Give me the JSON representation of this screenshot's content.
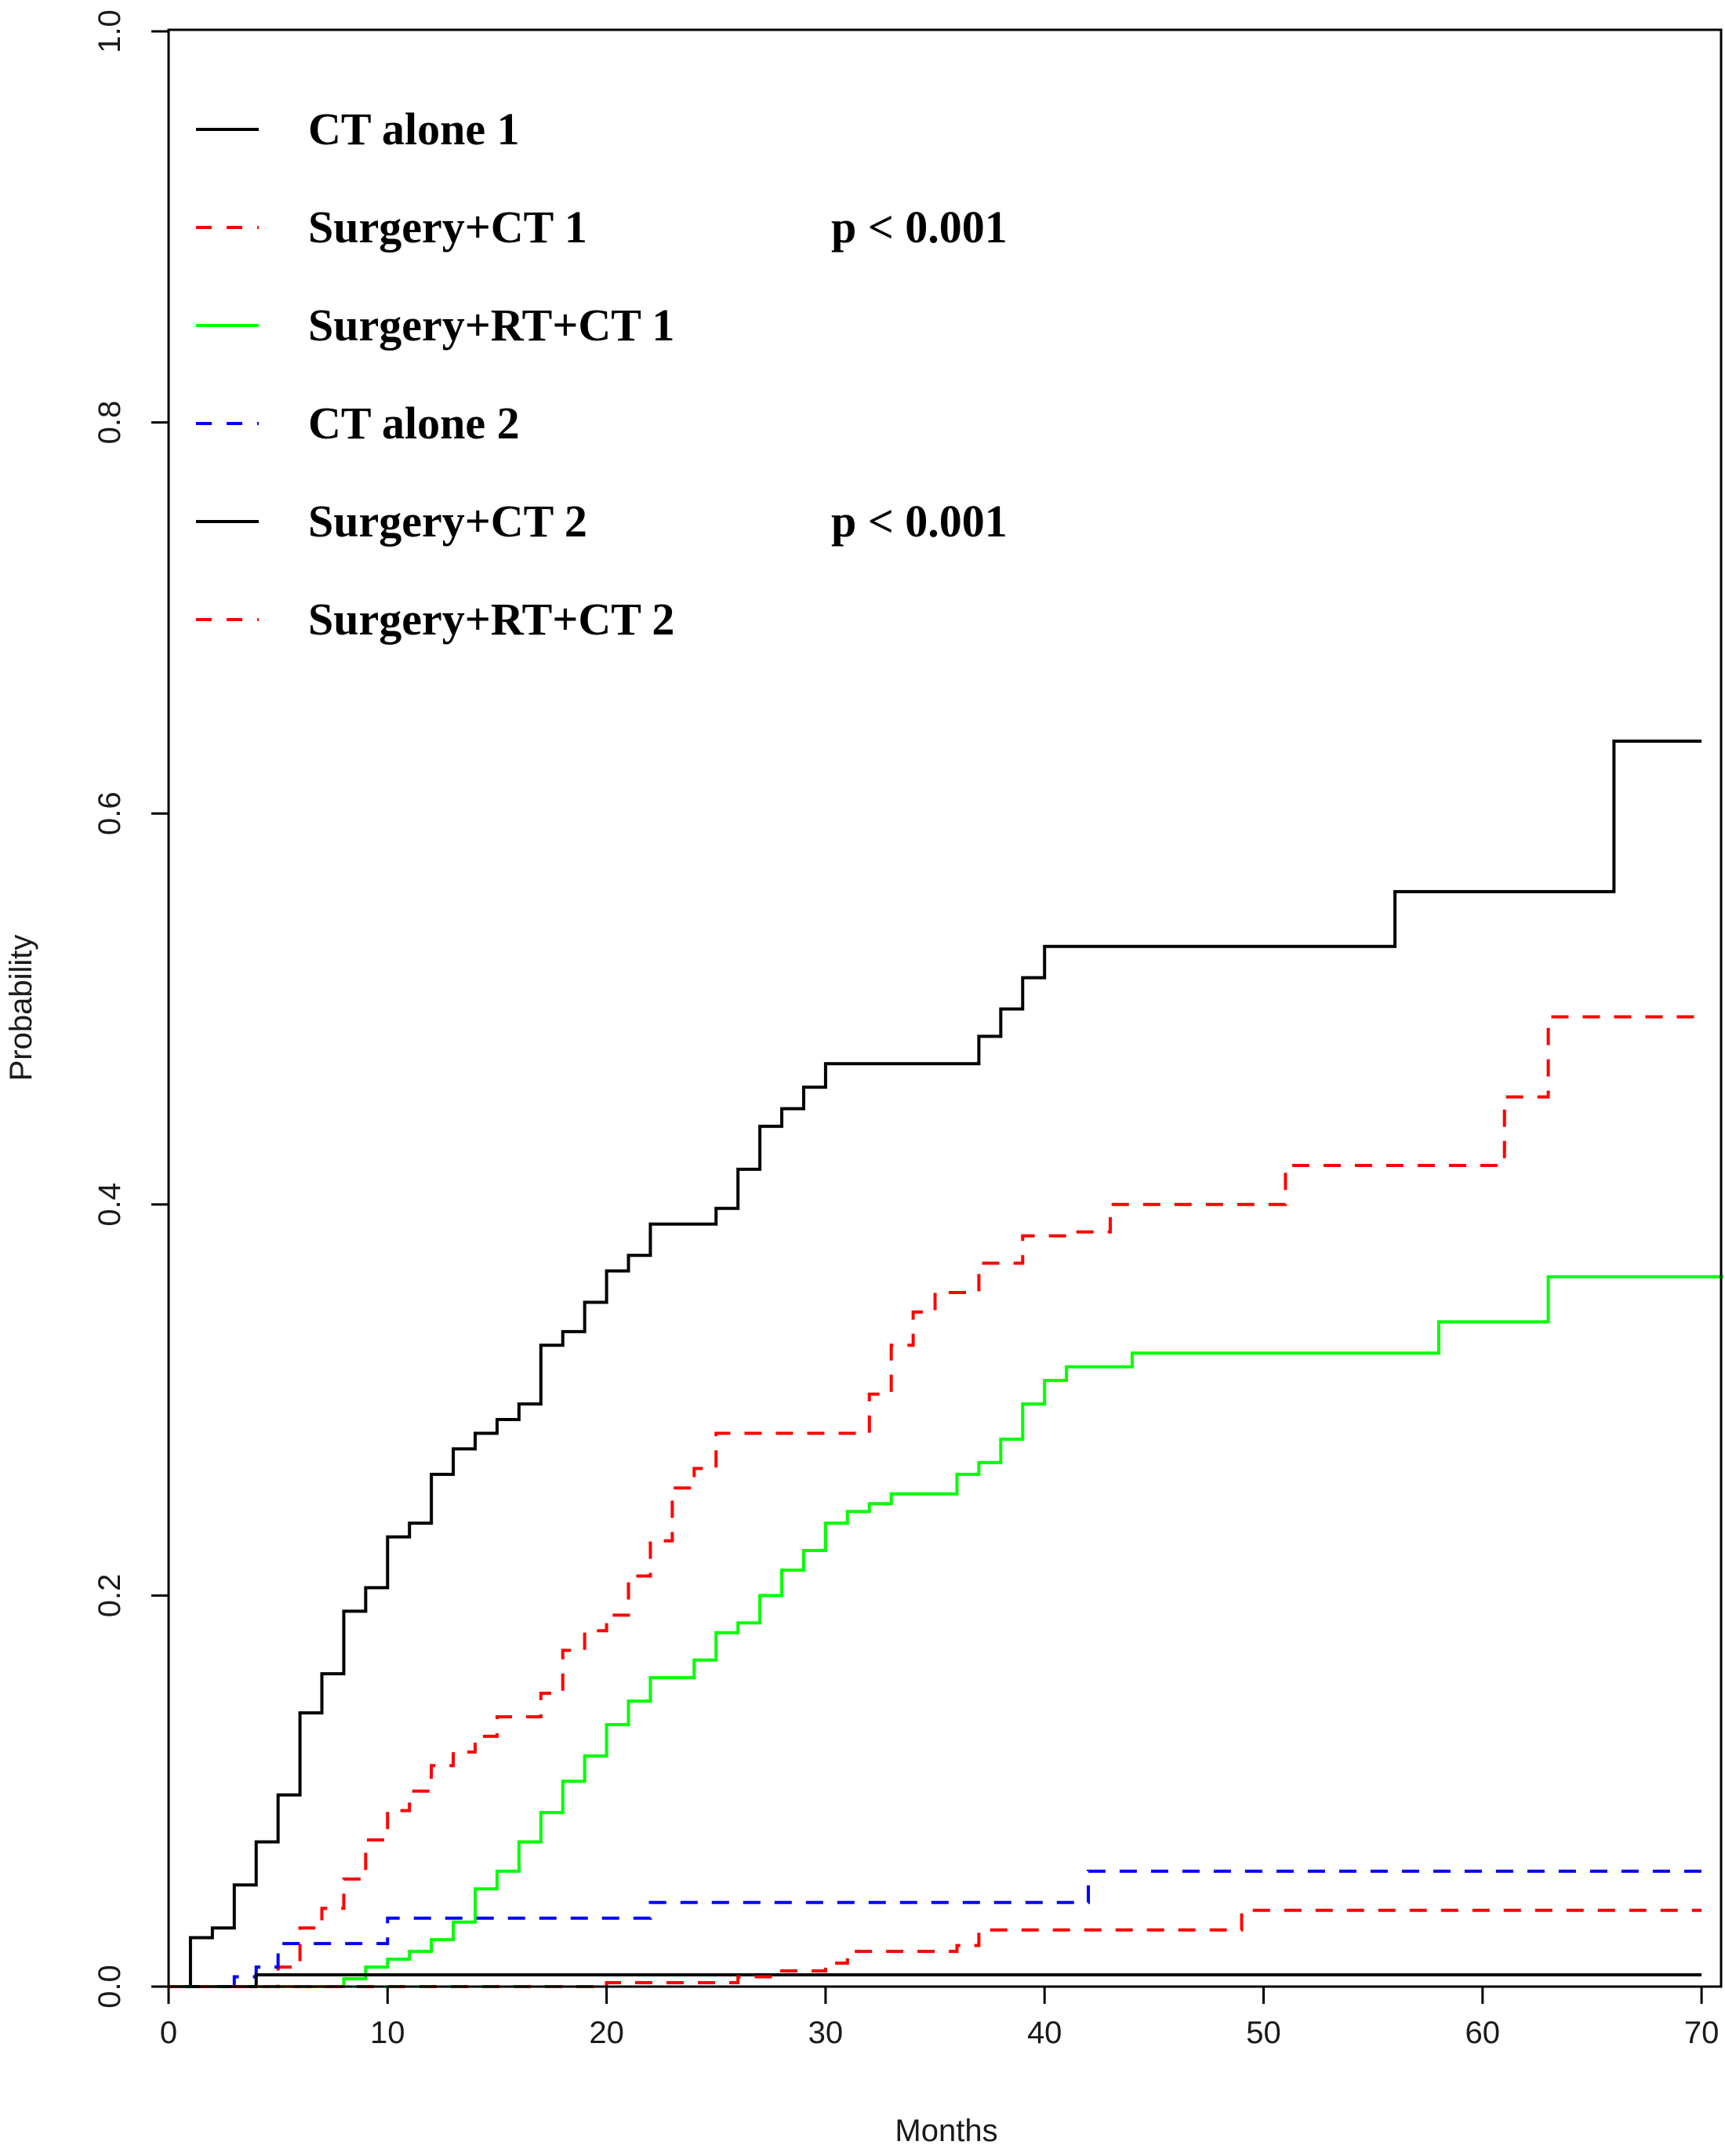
{
  "chart_data": {
    "type": "line",
    "title": "",
    "xlabel": "Months",
    "ylabel": "Probability",
    "xlim": [
      0,
      70
    ],
    "ylim": [
      0,
      1
    ],
    "x_ticks": [
      0,
      10,
      20,
      30,
      40,
      50,
      60,
      70
    ],
    "x_tick_labels": [
      "0",
      "10",
      "20",
      "30",
      "40",
      "50",
      "60",
      "70"
    ],
    "y_ticks": [
      0,
      0.2,
      0.4,
      0.6,
      0.8,
      1
    ],
    "y_tick_labels": [
      "0.0",
      "0.2",
      "0.4",
      "0.6",
      "0.8",
      "1.0"
    ],
    "grid": false,
    "legend_placement": "top-left",
    "step": true,
    "series": [
      {
        "name": "CT alone 1",
        "color": "#000000",
        "dash": "solid",
        "x": [
          0,
          1,
          2,
          3,
          4,
          5,
          6,
          7,
          8,
          9,
          10,
          11,
          12,
          13,
          14,
          15,
          16,
          17,
          18,
          19,
          20,
          21,
          22,
          25,
          26,
          27,
          28,
          29,
          30,
          37,
          38,
          39,
          40,
          56,
          66,
          70
        ],
        "y": [
          0,
          0.025,
          0.03,
          0.052,
          0.074,
          0.098,
          0.14,
          0.16,
          0.192,
          0.204,
          0.23,
          0.237,
          0.262,
          0.275,
          0.283,
          0.29,
          0.298,
          0.328,
          0.335,
          0.35,
          0.366,
          0.374,
          0.39,
          0.398,
          0.418,
          0.44,
          0.449,
          0.46,
          0.472,
          0.486,
          0.5,
          0.516,
          0.532,
          0.56,
          0.637,
          0.637
        ]
      },
      {
        "name": "Surgery+CT 1",
        "color": "#ff0000",
        "dash": "dashed",
        "x": [
          0,
          5,
          6,
          7,
          8,
          9,
          10,
          11,
          12,
          13,
          14,
          15,
          17,
          18,
          19,
          20,
          21,
          22,
          23,
          24,
          25,
          32,
          33,
          34,
          35,
          37,
          39,
          41,
          43,
          51,
          61,
          63,
          70
        ],
        "y": [
          0,
          0.01,
          0.03,
          0.04,
          0.055,
          0.075,
          0.09,
          0.1,
          0.113,
          0.12,
          0.128,
          0.138,
          0.15,
          0.172,
          0.182,
          0.19,
          0.21,
          0.228,
          0.255,
          0.265,
          0.283,
          0.303,
          0.328,
          0.345,
          0.355,
          0.37,
          0.384,
          0.386,
          0.4,
          0.42,
          0.455,
          0.496,
          0.496
        ]
      },
      {
        "name": "Surgery+RT+CT 1",
        "color": "#00ff00",
        "dash": "solid",
        "x": [
          0,
          8,
          9,
          10,
          11,
          12,
          13,
          14,
          15,
          16,
          17,
          18,
          19,
          20,
          21,
          22,
          24,
          25,
          26,
          27,
          28,
          29,
          30,
          31,
          32,
          33,
          36,
          37,
          38,
          39,
          40,
          41,
          44,
          58,
          63,
          71
        ],
        "y": [
          0,
          0.004,
          0.01,
          0.014,
          0.018,
          0.024,
          0.033,
          0.05,
          0.059,
          0.074,
          0.089,
          0.105,
          0.118,
          0.134,
          0.146,
          0.158,
          0.167,
          0.181,
          0.186,
          0.2,
          0.213,
          0.223,
          0.237,
          0.243,
          0.247,
          0.252,
          0.262,
          0.268,
          0.28,
          0.298,
          0.31,
          0.317,
          0.324,
          0.34,
          0.363,
          0.363
        ]
      },
      {
        "name": "CT alone 2",
        "color": "#0000ff",
        "dash": "dashed",
        "x": [
          0,
          3,
          4,
          5,
          10,
          22,
          42,
          70
        ],
        "y": [
          0,
          0.005,
          0.01,
          0.022,
          0.035,
          0.043,
          0.059,
          0.059
        ]
      },
      {
        "name": "Surgery+CT 2",
        "color": "#000000",
        "dash": "solid",
        "x": [
          0,
          4,
          70
        ],
        "y": [
          0,
          0.006,
          0.006
        ]
      },
      {
        "name": "Surgery+RT+CT 2",
        "color": "#ff0000",
        "dash": "dashed",
        "x": [
          0,
          20,
          26,
          28,
          30,
          31,
          36,
          37,
          49,
          70
        ],
        "y": [
          0,
          0.002,
          0.005,
          0.008,
          0.012,
          0.018,
          0.021,
          0.029,
          0.039,
          0.039
        ]
      }
    ],
    "annotations": [
      {
        "text": "p < 0.001",
        "series": "Surgery+CT 1"
      },
      {
        "text": "p < 0.001",
        "series": "Surgery+CT 2"
      }
    ]
  }
}
